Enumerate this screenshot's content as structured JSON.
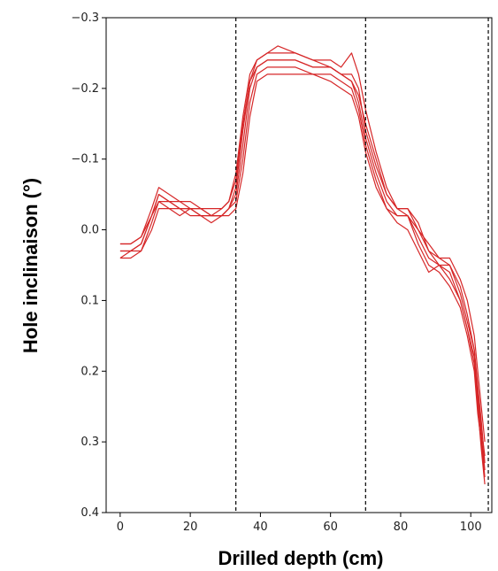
{
  "chart_data": {
    "type": "line",
    "title": "",
    "xlabel": "Drilled depth (cm)",
    "ylabel": "Hole inclinaison (°)",
    "xlim": [
      -4,
      106
    ],
    "ylim": [
      -0.3,
      0.4
    ],
    "y_inverted": true,
    "x_ticks": [
      0,
      20,
      40,
      60,
      80,
      100
    ],
    "y_ticks": [
      -0.3,
      -0.2,
      -0.1,
      0.0,
      0.1,
      0.2,
      0.3,
      0.4
    ],
    "y_tick_labels": [
      "−0.3",
      "−0.2",
      "−0.1",
      "0.0",
      "0.1",
      "0.2",
      "0.3",
      "0.4"
    ],
    "vlines": [
      33,
      70,
      105
    ],
    "grid": false,
    "line_color": "#d62728",
    "series": [
      {
        "x": [
          0,
          3,
          6,
          9,
          11,
          14,
          17,
          20,
          23,
          26,
          29,
          31,
          33,
          35,
          37,
          39,
          42,
          45,
          50,
          55,
          60,
          63,
          66,
          68,
          70,
          73,
          76,
          79,
          82,
          85,
          88,
          91,
          94,
          97,
          99,
          101,
          102,
          103,
          104
        ],
        "y": [
          0.03,
          0.03,
          0.02,
          -0.02,
          -0.05,
          -0.04,
          -0.03,
          -0.03,
          -0.03,
          -0.02,
          -0.02,
          -0.03,
          -0.05,
          -0.12,
          -0.2,
          -0.23,
          -0.24,
          -0.24,
          -0.24,
          -0.23,
          -0.23,
          -0.22,
          -0.21,
          -0.18,
          -0.13,
          -0.08,
          -0.04,
          -0.02,
          -0.02,
          0.0,
          0.03,
          0.04,
          0.05,
          0.08,
          0.12,
          0.17,
          0.22,
          0.27,
          0.33
        ]
      },
      {
        "x": [
          0,
          3,
          6,
          9,
          11,
          14,
          17,
          20,
          23,
          26,
          29,
          31,
          33,
          35,
          37,
          39,
          42,
          45,
          50,
          55,
          60,
          63,
          66,
          68,
          70,
          73,
          76,
          79,
          82,
          85,
          88,
          91,
          94,
          97,
          99,
          101,
          102,
          103,
          104
        ],
        "y": [
          0.04,
          0.03,
          0.03,
          -0.01,
          -0.04,
          -0.03,
          -0.03,
          -0.02,
          -0.02,
          -0.01,
          -0.02,
          -0.03,
          -0.06,
          -0.14,
          -0.21,
          -0.24,
          -0.25,
          -0.25,
          -0.25,
          -0.24,
          -0.23,
          -0.22,
          -0.21,
          -0.19,
          -0.15,
          -0.1,
          -0.05,
          -0.03,
          -0.02,
          0.01,
          0.04,
          0.05,
          0.06,
          0.1,
          0.14,
          0.19,
          0.25,
          0.31,
          0.36
        ]
      },
      {
        "x": [
          0,
          3,
          6,
          9,
          11,
          14,
          17,
          20,
          23,
          26,
          29,
          31,
          33,
          35,
          37,
          39,
          42,
          45,
          50,
          55,
          60,
          63,
          66,
          68,
          70,
          73,
          76,
          79,
          82,
          85,
          88,
          91,
          94,
          97,
          99,
          101,
          102,
          103,
          104
        ],
        "y": [
          0.02,
          0.02,
          0.01,
          -0.03,
          -0.06,
          -0.05,
          -0.04,
          -0.04,
          -0.03,
          -0.03,
          -0.03,
          -0.04,
          -0.08,
          -0.16,
          -0.22,
          -0.24,
          -0.25,
          -0.26,
          -0.25,
          -0.24,
          -0.24,
          -0.23,
          -0.25,
          -0.22,
          -0.17,
          -0.11,
          -0.06,
          -0.03,
          -0.03,
          0.0,
          0.02,
          0.04,
          0.04,
          0.07,
          0.1,
          0.15,
          0.2,
          0.25,
          0.3
        ]
      },
      {
        "x": [
          0,
          3,
          6,
          9,
          11,
          14,
          17,
          20,
          23,
          26,
          29,
          31,
          33,
          35,
          37,
          39,
          42,
          45,
          50,
          55,
          60,
          63,
          66,
          68,
          70,
          73,
          76,
          79,
          82,
          85,
          88,
          91,
          94,
          97,
          99,
          101,
          102,
          103,
          104
        ],
        "y": [
          0.03,
          0.03,
          0.02,
          -0.02,
          -0.04,
          -0.04,
          -0.03,
          -0.03,
          -0.02,
          -0.02,
          -0.02,
          -0.03,
          -0.04,
          -0.1,
          -0.18,
          -0.22,
          -0.23,
          -0.23,
          -0.23,
          -0.22,
          -0.22,
          -0.21,
          -0.2,
          -0.17,
          -0.12,
          -0.07,
          -0.03,
          -0.01,
          0.0,
          0.03,
          0.06,
          0.05,
          0.07,
          0.1,
          0.14,
          0.18,
          0.24,
          0.29,
          0.34
        ]
      },
      {
        "x": [
          0,
          3,
          6,
          9,
          11,
          14,
          17,
          20,
          23,
          26,
          29,
          31,
          33,
          35,
          37,
          39,
          42,
          45,
          50,
          55,
          60,
          63,
          66,
          68,
          70,
          73,
          76,
          79,
          82,
          85,
          88,
          91,
          94,
          97,
          99,
          101,
          102,
          103,
          104
        ],
        "y": [
          0.04,
          0.04,
          0.03,
          0.0,
          -0.03,
          -0.03,
          -0.02,
          -0.03,
          -0.02,
          -0.02,
          -0.02,
          -0.02,
          -0.03,
          -0.08,
          -0.16,
          -0.21,
          -0.22,
          -0.22,
          -0.22,
          -0.22,
          -0.21,
          -0.2,
          -0.19,
          -0.16,
          -0.11,
          -0.06,
          -0.03,
          -0.02,
          -0.02,
          0.02,
          0.05,
          0.06,
          0.08,
          0.11,
          0.15,
          0.2,
          0.26,
          0.3,
          0.35
        ]
      },
      {
        "x": [
          0,
          3,
          6,
          9,
          11,
          14,
          17,
          20,
          23,
          26,
          29,
          31,
          33,
          35,
          37,
          39,
          42,
          45,
          50,
          55,
          60,
          63,
          66,
          68,
          70,
          73,
          76,
          79,
          82,
          85,
          88,
          91,
          94,
          97,
          99,
          101,
          102,
          103,
          104
        ],
        "y": [
          0.02,
          0.02,
          0.01,
          -0.02,
          -0.05,
          -0.04,
          -0.04,
          -0.03,
          -0.03,
          -0.02,
          -0.03,
          -0.04,
          -0.07,
          -0.15,
          -0.21,
          -0.23,
          -0.24,
          -0.24,
          -0.24,
          -0.23,
          -0.23,
          -0.22,
          -0.22,
          -0.2,
          -0.14,
          -0.09,
          -0.05,
          -0.03,
          -0.03,
          -0.01,
          0.03,
          0.05,
          0.05,
          0.09,
          0.13,
          0.17,
          0.23,
          0.28,
          0.32
        ]
      }
    ]
  }
}
